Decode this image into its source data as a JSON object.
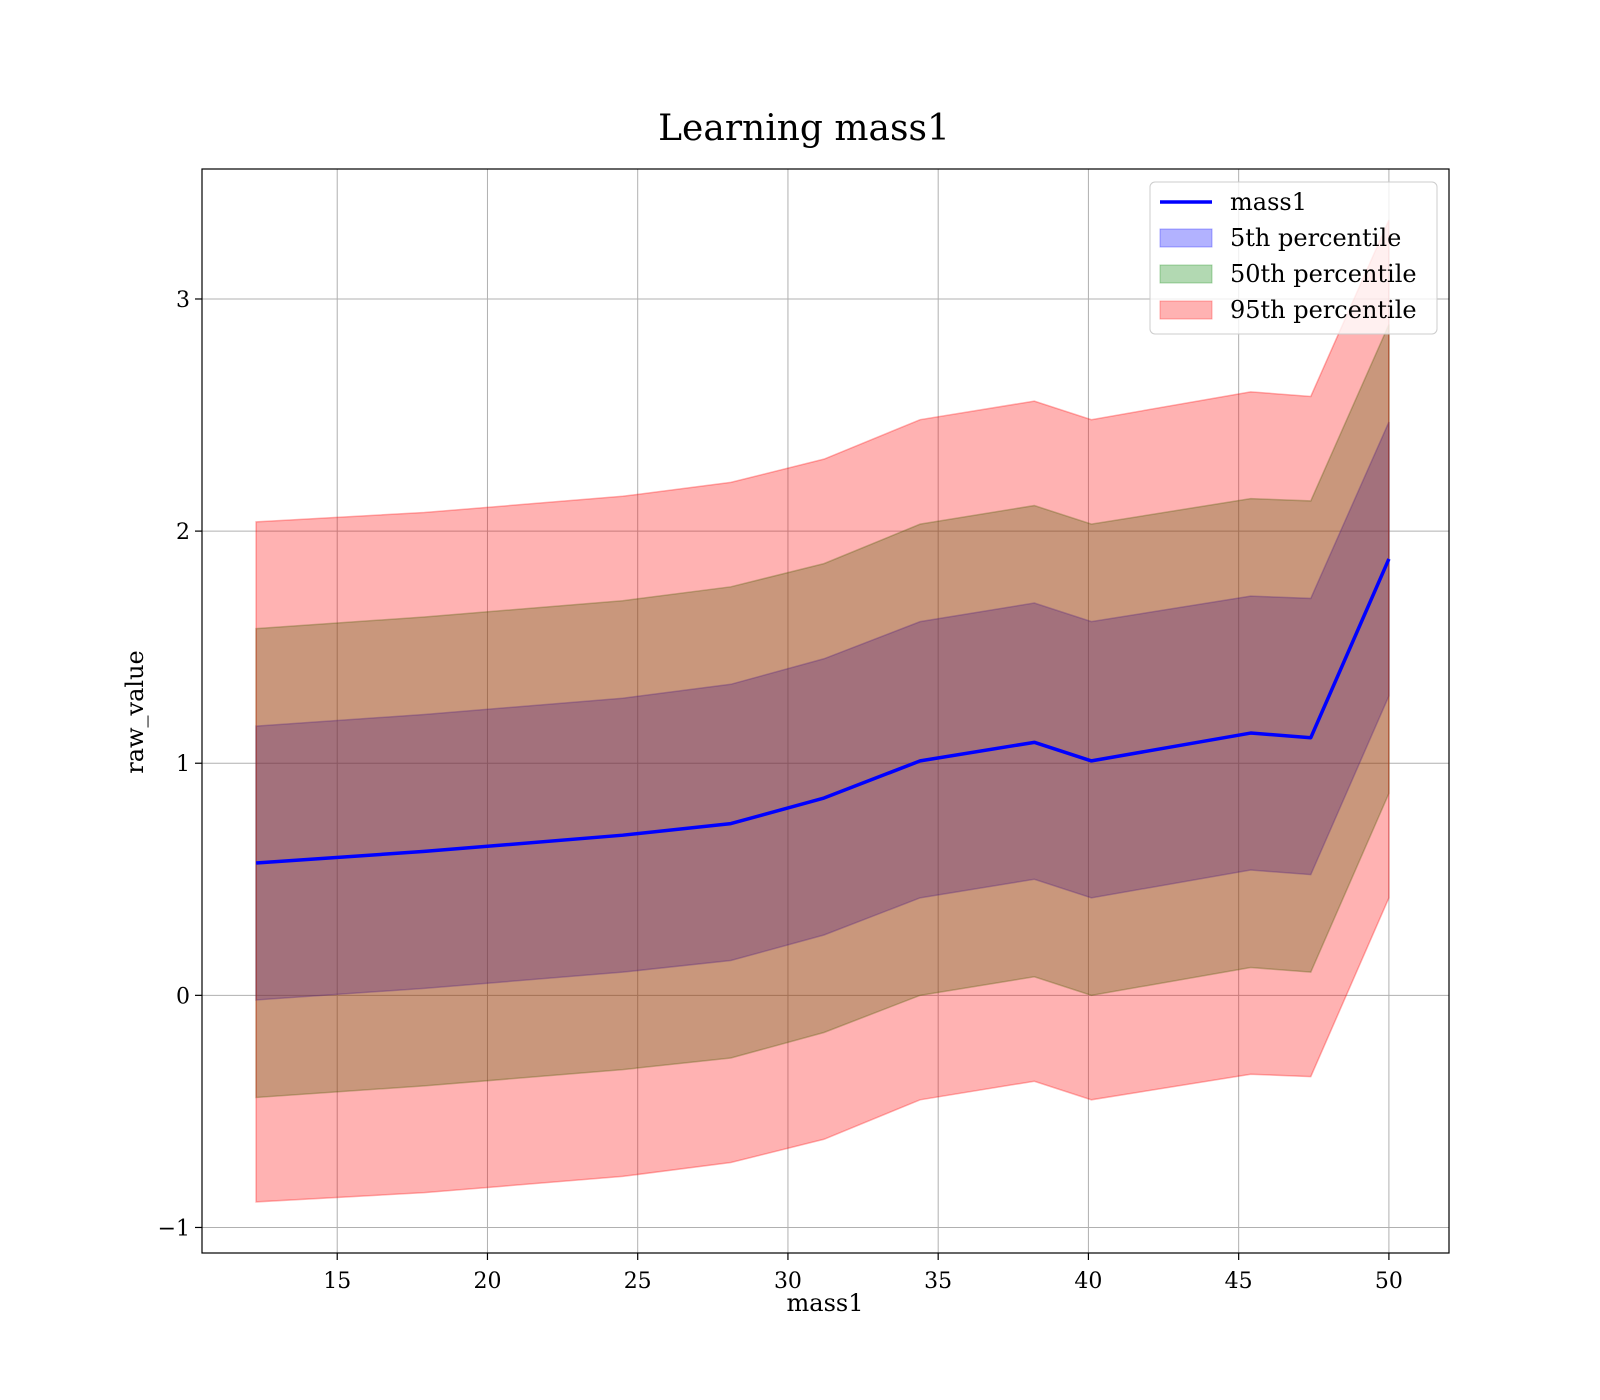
{
  "chart_data": {
    "type": "area",
    "title": "Learning mass1",
    "xlabel": "mass1",
    "ylabel": "raw_value",
    "xlim": [
      10.5,
      52
    ],
    "ylim": [
      -1.11,
      3.56
    ],
    "xticks": [
      15,
      20,
      25,
      30,
      35,
      40,
      45,
      50
    ],
    "yticks": [
      -1,
      0,
      1,
      2,
      3
    ],
    "ytick_labels": [
      "−1",
      "0",
      "1",
      "2",
      "3"
    ],
    "grid": true,
    "legend_position": "top-right",
    "x": [
      12.3,
      17.9,
      24.5,
      28.1,
      31.2,
      34.4,
      38.2,
      40.1,
      45.4,
      47.4,
      50.0
    ],
    "series": [
      {
        "name": "mass1",
        "kind": "line",
        "color": "#0000ff",
        "values": [
          0.57,
          0.62,
          0.69,
          0.74,
          0.85,
          1.01,
          1.09,
          1.01,
          1.13,
          1.11,
          1.88
        ]
      }
    ],
    "bands": [
      {
        "name": "5th percentile",
        "color": "#0000ff",
        "lower": [
          -0.02,
          0.03,
          0.1,
          0.15,
          0.26,
          0.42,
          0.5,
          0.42,
          0.54,
          0.52,
          1.29
        ],
        "upper": [
          1.16,
          1.21,
          1.28,
          1.34,
          1.45,
          1.61,
          1.69,
          1.61,
          1.72,
          1.71,
          2.47
        ]
      },
      {
        "name": "50th percentile",
        "color": "#008000",
        "lower": [
          -0.44,
          -0.39,
          -0.32,
          -0.27,
          -0.16,
          0.0,
          0.08,
          0.0,
          0.12,
          0.1,
          0.87
        ],
        "upper": [
          1.58,
          1.63,
          1.7,
          1.76,
          1.86,
          2.03,
          2.11,
          2.03,
          2.14,
          2.13,
          2.89
        ]
      },
      {
        "name": "95th percentile",
        "color": "#ff0000",
        "lower": [
          -0.89,
          -0.85,
          -0.78,
          -0.72,
          -0.62,
          -0.45,
          -0.37,
          -0.45,
          -0.34,
          -0.35,
          0.42
        ],
        "upper": [
          2.04,
          2.08,
          2.15,
          2.21,
          2.31,
          2.48,
          2.56,
          2.48,
          2.6,
          2.58,
          3.34
        ]
      }
    ]
  }
}
